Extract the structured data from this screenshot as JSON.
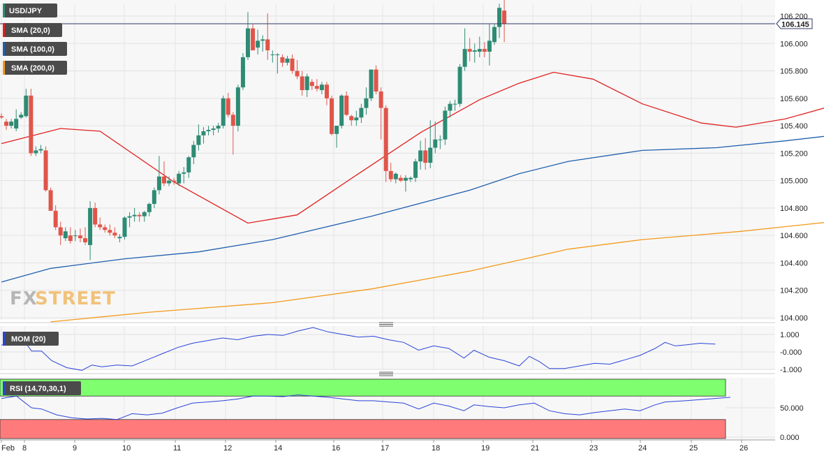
{
  "instrument": {
    "label": "USD/JPY"
  },
  "indicators": [
    {
      "label": "SMA (20,0)",
      "color": "#e02020"
    },
    {
      "label": "SMA (100,0)",
      "color": "#1f5fae"
    },
    {
      "label": "SMA (200,0)",
      "color": "#f39a1a"
    }
  ],
  "current_price": "106.145",
  "logo": {
    "part1": "FX",
    "part2": "STREET"
  },
  "colors": {
    "up": "#2e8b74",
    "down": "#e0554a",
    "sma20": "#e02020",
    "sma100": "#1f5fae",
    "sma200": "#f39a1a",
    "mom": "#2a44d8",
    "rsi": "#2a44d8",
    "rsi_over": "#7fff6f",
    "rsi_under": "#ff7b7b"
  },
  "chart_data": [
    {
      "type": "candlestick",
      "title": "USD/JPY",
      "ylim": [
        104.0,
        106.3
      ],
      "yticks": [
        "106.200",
        "106.000",
        "105.800",
        "105.600",
        "105.400",
        "105.200",
        "105.000",
        "104.800",
        "104.600",
        "104.400",
        "104.200",
        "104.000"
      ],
      "ytick_values": [
        106.2,
        106.0,
        105.8,
        105.6,
        105.4,
        105.2,
        105.0,
        104.8,
        104.6,
        104.4,
        104.2,
        104.0
      ],
      "xticks": [
        "Feb",
        "8",
        "9",
        "10",
        "11",
        "12",
        "14",
        "16",
        "17",
        "18",
        "19",
        "21",
        "23",
        "24",
        "25",
        "26"
      ],
      "candles": [
        [
          105.47,
          105.49,
          105.45,
          105.46
        ],
        [
          105.43,
          105.45,
          105.37,
          105.4
        ],
        [
          105.4,
          105.45,
          105.38,
          105.43
        ],
        [
          105.38,
          105.52,
          105.36,
          105.45
        ],
        [
          105.46,
          105.5,
          105.45,
          105.48
        ],
        [
          105.47,
          105.67,
          105.46,
          105.62
        ],
        [
          105.62,
          105.67,
          105.18,
          105.2
        ],
        [
          105.2,
          105.25,
          105.18,
          105.22
        ],
        [
          105.22,
          105.26,
          105.2,
          105.23
        ],
        [
          105.22,
          105.25,
          104.92,
          104.93
        ],
        [
          104.93,
          104.95,
          104.78,
          104.78
        ],
        [
          104.78,
          104.82,
          104.64,
          104.66
        ],
        [
          104.66,
          104.7,
          104.53,
          104.6
        ],
        [
          104.58,
          104.66,
          104.56,
          104.63
        ],
        [
          104.6,
          104.66,
          104.54,
          104.56
        ],
        [
          104.6,
          104.64,
          104.56,
          104.6
        ],
        [
          104.6,
          104.65,
          104.55,
          104.58
        ],
        [
          104.58,
          104.66,
          104.53,
          104.55
        ],
        [
          104.53,
          104.85,
          104.42,
          104.8
        ],
        [
          104.8,
          104.84,
          104.66,
          104.68
        ],
        [
          104.68,
          104.73,
          104.64,
          104.66
        ],
        [
          104.66,
          104.68,
          104.62,
          104.64
        ],
        [
          104.64,
          104.68,
          104.6,
          104.62
        ],
        [
          104.62,
          104.66,
          104.58,
          104.6
        ],
        [
          104.58,
          104.61,
          104.55,
          104.59
        ],
        [
          104.59,
          104.74,
          104.57,
          104.73
        ],
        [
          104.73,
          104.77,
          104.66,
          104.74
        ],
        [
          104.74,
          104.8,
          104.7,
          104.75
        ],
        [
          104.75,
          104.77,
          104.7,
          104.74
        ],
        [
          104.74,
          104.78,
          104.7,
          104.77
        ],
        [
          104.77,
          104.84,
          104.74,
          104.83
        ],
        [
          104.83,
          104.95,
          104.8,
          104.93
        ],
        [
          104.93,
          105.18,
          104.9,
          105.03
        ],
        [
          105.03,
          105.14,
          104.96,
          104.98
        ],
        [
          104.98,
          105.03,
          104.96,
          105.0
        ],
        [
          105.0,
          105.02,
          104.97,
          104.99
        ],
        [
          104.98,
          105.07,
          104.96,
          105.05
        ],
        [
          105.05,
          105.1,
          104.98,
          105.06
        ],
        [
          105.06,
          105.18,
          105.02,
          105.17
        ],
        [
          105.17,
          105.29,
          105.12,
          105.26
        ],
        [
          105.26,
          105.41,
          105.22,
          105.33
        ],
        [
          105.33,
          105.39,
          105.27,
          105.36
        ],
        [
          105.36,
          105.4,
          105.33,
          105.37
        ],
        [
          105.37,
          105.4,
          105.33,
          105.38
        ],
        [
          105.38,
          105.42,
          105.35,
          105.4
        ],
        [
          105.4,
          105.62,
          105.38,
          105.6
        ],
        [
          105.6,
          105.64,
          105.46,
          105.48
        ],
        [
          105.48,
          105.5,
          105.19,
          105.4
        ],
        [
          105.4,
          105.7,
          105.36,
          105.68
        ],
        [
          105.68,
          105.93,
          105.66,
          105.9
        ],
        [
          105.9,
          106.23,
          105.88,
          106.11
        ],
        [
          106.11,
          106.14,
          105.95,
          105.95
        ],
        [
          105.97,
          106.1,
          105.92,
          106.02
        ],
        [
          106.02,
          106.06,
          105.94,
          106.03
        ],
        [
          106.03,
          106.22,
          105.88,
          105.95
        ],
        [
          105.92,
          105.95,
          105.86,
          105.92
        ],
        [
          105.92,
          105.93,
          105.78,
          105.92
        ],
        [
          105.9,
          105.92,
          105.83,
          105.86
        ],
        [
          105.86,
          105.91,
          105.84,
          105.89
        ],
        [
          105.89,
          105.92,
          105.78,
          105.8
        ],
        [
          105.8,
          105.88,
          105.74,
          105.76
        ],
        [
          105.76,
          105.8,
          105.62,
          105.66
        ],
        [
          105.66,
          105.78,
          105.61,
          105.76
        ],
        [
          105.72,
          105.74,
          105.66,
          105.69
        ],
        [
          105.69,
          105.74,
          105.65,
          105.67
        ],
        [
          105.66,
          105.72,
          105.63,
          105.7
        ],
        [
          105.7,
          105.72,
          105.55,
          105.6
        ],
        [
          105.6,
          105.62,
          105.33,
          105.34
        ],
        [
          105.34,
          105.4,
          105.24,
          105.4
        ],
        [
          105.4,
          105.63,
          105.38,
          105.62
        ],
        [
          105.62,
          105.65,
          105.47,
          105.48
        ],
        [
          105.47,
          105.48,
          105.4,
          105.44
        ],
        [
          105.44,
          105.51,
          105.4,
          105.46
        ],
        [
          105.46,
          105.56,
          105.42,
          105.53
        ],
        [
          105.53,
          105.68,
          105.48,
          105.6
        ],
        [
          105.6,
          105.81,
          105.58,
          105.81
        ],
        [
          105.81,
          105.84,
          105.63,
          105.65
        ],
        [
          105.65,
          105.68,
          105.3,
          105.53
        ],
        [
          105.53,
          105.55,
          104.99,
          105.07
        ],
        [
          105.07,
          105.13,
          104.99,
          105.01
        ],
        [
          105.01,
          105.06,
          104.98,
          105.05
        ],
        [
          105.02,
          105.04,
          104.99,
          105.0
        ],
        [
          105.0,
          105.04,
          104.92,
          105.02
        ],
        [
          105.01,
          105.03,
          104.99,
          105.02
        ],
        [
          105.02,
          105.16,
          104.99,
          105.14
        ],
        [
          105.14,
          105.29,
          105.08,
          105.22
        ],
        [
          105.22,
          105.31,
          105.08,
          105.13
        ],
        [
          105.13,
          105.44,
          105.09,
          105.24
        ],
        [
          105.24,
          105.43,
          105.2,
          105.3
        ],
        [
          105.3,
          105.33,
          105.23,
          105.3
        ],
        [
          105.3,
          105.54,
          105.26,
          105.51
        ],
        [
          105.51,
          105.58,
          105.46,
          105.56
        ],
        [
          105.56,
          105.59,
          105.51,
          105.56
        ],
        [
          105.56,
          105.85,
          105.54,
          105.83
        ],
        [
          105.83,
          106.11,
          105.8,
          105.96
        ],
        [
          105.96,
          106.04,
          105.87,
          105.94
        ],
        [
          105.94,
          106.0,
          105.86,
          105.95
        ],
        [
          105.94,
          106.05,
          105.9,
          105.96
        ],
        [
          105.96,
          106.01,
          105.9,
          105.94
        ],
        [
          105.94,
          106.14,
          105.84,
          106.02
        ],
        [
          106.01,
          106.14,
          105.99,
          106.12
        ],
        [
          106.12,
          106.29,
          106.04,
          106.26
        ],
        [
          106.24,
          106.33,
          106.01,
          106.145
        ]
      ],
      "sma20": [
        [
          0,
          105.27
        ],
        [
          12,
          105.38
        ],
        [
          20,
          105.36
        ],
        [
          35,
          104.99
        ],
        [
          50,
          104.69
        ],
        [
          60,
          104.75
        ],
        [
          72,
          105.04
        ],
        [
          85,
          105.35
        ],
        [
          97,
          105.59
        ],
        [
          105,
          105.71
        ],
        [
          112,
          105.79
        ],
        [
          120,
          105.74
        ],
        [
          130,
          105.56
        ],
        [
          142,
          105.42
        ],
        [
          149,
          105.39
        ],
        [
          159,
          105.45
        ],
        [
          171,
          105.57
        ]
      ],
      "sma100": [
        [
          0,
          104.26
        ],
        [
          10,
          104.36
        ],
        [
          25,
          104.43
        ],
        [
          40,
          104.48
        ],
        [
          55,
          104.57
        ],
        [
          75,
          104.74
        ],
        [
          95,
          104.93
        ],
        [
          105,
          105.05
        ],
        [
          115,
          105.14
        ],
        [
          130,
          105.22
        ],
        [
          145,
          105.24
        ],
        [
          159,
          105.29
        ],
        [
          171,
          105.34
        ]
      ],
      "sma200": [
        [
          10,
          103.97
        ],
        [
          30,
          104.04
        ],
        [
          55,
          104.11
        ],
        [
          75,
          104.21
        ],
        [
          95,
          104.34
        ],
        [
          115,
          104.5
        ],
        [
          130,
          104.57
        ],
        [
          150,
          104.63
        ],
        [
          171,
          104.71
        ]
      ]
    },
    {
      "type": "line",
      "title": "MOM (20)",
      "yticks": [
        "1.000",
        "-0.000",
        "-1.000"
      ],
      "ytick_values": [
        1.0,
        0.0,
        -1.0
      ],
      "ylim": [
        -1.15,
        1.45
      ],
      "values": [
        [
          0,
          0.4
        ],
        [
          5,
          0.45
        ],
        [
          10,
          0.45
        ],
        [
          12,
          0.05
        ],
        [
          16,
          0.05
        ],
        [
          20,
          -0.5
        ],
        [
          26,
          -0.9
        ],
        [
          32,
          -1.05
        ],
        [
          36,
          -0.75
        ],
        [
          40,
          -0.85
        ],
        [
          46,
          -0.75
        ],
        [
          52,
          -0.8
        ],
        [
          58,
          -0.45
        ],
        [
          64,
          -0.1
        ],
        [
          70,
          0.25
        ],
        [
          76,
          0.5
        ],
        [
          82,
          0.65
        ],
        [
          88,
          0.8
        ],
        [
          94,
          0.7
        ],
        [
          100,
          0.9
        ],
        [
          106,
          1.0
        ],
        [
          112,
          0.95
        ],
        [
          118,
          1.2
        ],
        [
          124,
          1.4
        ],
        [
          130,
          1.15
        ],
        [
          136,
          1.0
        ],
        [
          142,
          0.85
        ],
        [
          148,
          0.9
        ],
        [
          154,
          0.7
        ],
        [
          160,
          0.55
        ],
        [
          166,
          0.1
        ],
        [
          172,
          0.35
        ],
        [
          178,
          0.2
        ],
        [
          184,
          -0.35
        ],
        [
          188,
          0.1
        ],
        [
          194,
          -0.3
        ],
        [
          200,
          -0.5
        ],
        [
          206,
          -0.8
        ],
        [
          210,
          -0.25
        ],
        [
          214,
          -0.55
        ],
        [
          218,
          -0.95
        ],
        [
          224,
          -0.95
        ],
        [
          230,
          -0.8
        ],
        [
          236,
          -0.65
        ],
        [
          242,
          -0.7
        ],
        [
          248,
          -0.45
        ],
        [
          254,
          -0.2
        ],
        [
          260,
          0.2
        ],
        [
          264,
          0.55
        ],
        [
          268,
          0.35
        ],
        [
          272,
          0.4
        ],
        [
          278,
          0.5
        ],
        [
          284,
          0.45
        ]
      ]
    },
    {
      "type": "line",
      "title": "RSI (14,70,30,1)",
      "yticks": [
        "50.000",
        "0.000"
      ],
      "ytick_values": [
        50,
        0
      ],
      "ylim": [
        0,
        100
      ],
      "overbought": 70,
      "oversold": 30,
      "values": [
        [
          0,
          66
        ],
        [
          6,
          70
        ],
        [
          12,
          50
        ],
        [
          16,
          48
        ],
        [
          22,
          38
        ],
        [
          28,
          33
        ],
        [
          34,
          31
        ],
        [
          40,
          32
        ],
        [
          46,
          30
        ],
        [
          52,
          40
        ],
        [
          58,
          38
        ],
        [
          64,
          41
        ],
        [
          70,
          50
        ],
        [
          76,
          58
        ],
        [
          82,
          60
        ],
        [
          88,
          62
        ],
        [
          94,
          65
        ],
        [
          100,
          70
        ],
        [
          106,
          70
        ],
        [
          112,
          69
        ],
        [
          118,
          72
        ],
        [
          124,
          70
        ],
        [
          130,
          68
        ],
        [
          136,
          65
        ],
        [
          142,
          62
        ],
        [
          148,
          62
        ],
        [
          154,
          60
        ],
        [
          160,
          58
        ],
        [
          166,
          48
        ],
        [
          172,
          58
        ],
        [
          178,
          53
        ],
        [
          184,
          45
        ],
        [
          188,
          55
        ],
        [
          194,
          52
        ],
        [
          200,
          50
        ],
        [
          206,
          55
        ],
        [
          212,
          58
        ],
        [
          218,
          45
        ],
        [
          224,
          40
        ],
        [
          230,
          38
        ],
        [
          236,
          42
        ],
        [
          242,
          45
        ],
        [
          248,
          48
        ],
        [
          254,
          45
        ],
        [
          260,
          55
        ],
        [
          264,
          60
        ],
        [
          268,
          61
        ],
        [
          272,
          62
        ],
        [
          278,
          64
        ],
        [
          284,
          66
        ],
        [
          290,
          68
        ]
      ]
    }
  ]
}
